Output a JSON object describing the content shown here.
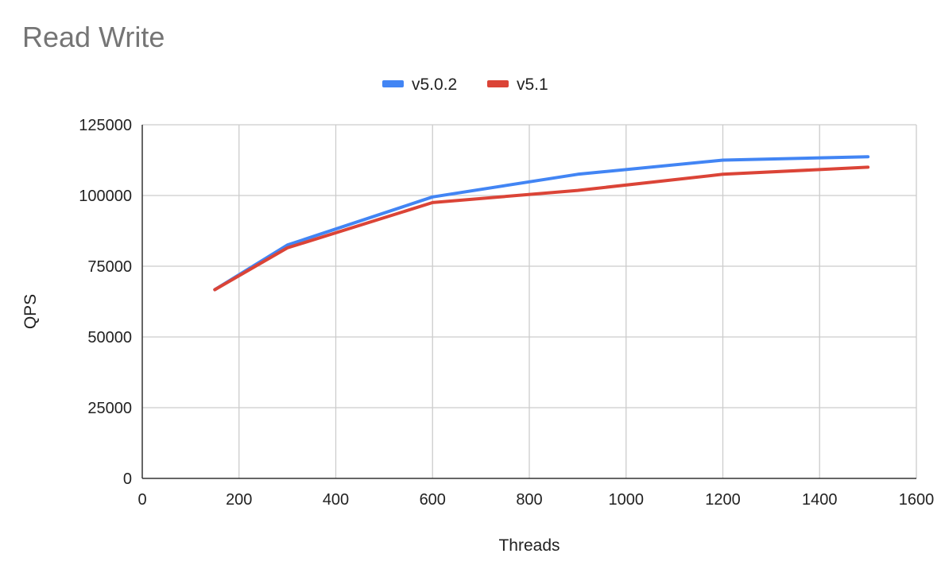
{
  "chart_data": {
    "type": "line",
    "title": "Read Write",
    "xlabel": "Threads",
    "ylabel": "QPS",
    "xlim": [
      0,
      1600
    ],
    "ylim": [
      0,
      125000
    ],
    "x_ticks": [
      "0",
      "200",
      "400",
      "600",
      "800",
      "1000",
      "1200",
      "1400",
      "1600"
    ],
    "y_ticks": [
      "0",
      "25000",
      "50000",
      "75000",
      "100000",
      "125000"
    ],
    "grid": true,
    "legend": "top-center",
    "x": [
      150,
      300,
      600,
      900,
      1200,
      1500
    ],
    "series": [
      {
        "name": "v5.0.2",
        "color": "#4285f4",
        "values": [
          66700,
          82500,
          99500,
          107500,
          112500,
          113700
        ]
      },
      {
        "name": "v5.1",
        "color": "#db4437",
        "values": [
          66700,
          81500,
          97500,
          101800,
          107500,
          110000
        ]
      }
    ]
  }
}
